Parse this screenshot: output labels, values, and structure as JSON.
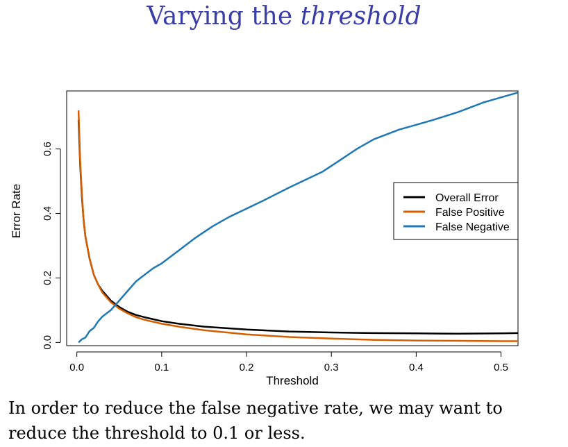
{
  "slide": {
    "title_plain": "Varying the",
    "title_italic": "threshold",
    "caption_line1": "In order to reduce the false negative rate, we may want to",
    "caption_line2": "reduce the threshold to 0.1 or less."
  },
  "chart_data": {
    "type": "line",
    "xlabel": "Threshold",
    "ylabel": "Error Rate",
    "xlim": [
      -0.012,
      0.52
    ],
    "ylim": [
      -0.01,
      0.78
    ],
    "xticks": [
      0.0,
      0.1,
      0.2,
      0.3,
      0.4,
      0.5
    ],
    "xtick_labels": [
      "0.0",
      "0.1",
      "0.2",
      "0.3",
      "0.4",
      "0.5"
    ],
    "yticks": [
      0.0,
      0.2,
      0.4,
      0.6
    ],
    "ytick_labels": [
      "0.0",
      "0.2",
      "0.4",
      "0.6"
    ],
    "legend_position": "right",
    "series": [
      {
        "name": "Overall Error",
        "color": "#000000",
        "x": [
          0.002,
          0.004,
          0.006,
          0.008,
          0.01,
          0.015,
          0.02,
          0.025,
          0.03,
          0.04,
          0.05,
          0.06,
          0.07,
          0.08,
          0.1,
          0.12,
          0.15,
          0.2,
          0.25,
          0.3,
          0.35,
          0.4,
          0.45,
          0.5,
          0.52
        ],
        "y": [
          0.69,
          0.55,
          0.45,
          0.38,
          0.33,
          0.26,
          0.21,
          0.18,
          0.16,
          0.13,
          0.11,
          0.095,
          0.085,
          0.078,
          0.066,
          0.058,
          0.049,
          0.04,
          0.034,
          0.031,
          0.029,
          0.028,
          0.027,
          0.028,
          0.029
        ]
      },
      {
        "name": "False Positive",
        "color": "#d55e00",
        "x": [
          0.002,
          0.004,
          0.006,
          0.008,
          0.01,
          0.015,
          0.02,
          0.025,
          0.03,
          0.04,
          0.05,
          0.06,
          0.07,
          0.08,
          0.1,
          0.12,
          0.15,
          0.2,
          0.25,
          0.3,
          0.35,
          0.4,
          0.45,
          0.5,
          0.52
        ],
        "y": [
          0.72,
          0.56,
          0.46,
          0.38,
          0.33,
          0.26,
          0.21,
          0.18,
          0.155,
          0.125,
          0.105,
          0.09,
          0.078,
          0.07,
          0.058,
          0.049,
          0.038,
          0.025,
          0.017,
          0.012,
          0.008,
          0.006,
          0.005,
          0.004,
          0.004
        ]
      },
      {
        "name": "False Negative",
        "color": "#1f78b4",
        "x": [
          0.002,
          0.006,
          0.01,
          0.015,
          0.02,
          0.025,
          0.03,
          0.04,
          0.05,
          0.06,
          0.07,
          0.08,
          0.09,
          0.1,
          0.12,
          0.14,
          0.16,
          0.18,
          0.2,
          0.22,
          0.25,
          0.27,
          0.29,
          0.31,
          0.33,
          0.35,
          0.38,
          0.4,
          0.42,
          0.45,
          0.48,
          0.5,
          0.52
        ],
        "y": [
          0.0,
          0.01,
          0.015,
          0.035,
          0.045,
          0.065,
          0.08,
          0.1,
          0.13,
          0.16,
          0.19,
          0.21,
          0.23,
          0.245,
          0.285,
          0.325,
          0.36,
          0.39,
          0.415,
          0.44,
          0.48,
          0.505,
          0.53,
          0.565,
          0.6,
          0.63,
          0.66,
          0.675,
          0.69,
          0.715,
          0.745,
          0.76,
          0.775
        ]
      }
    ]
  }
}
